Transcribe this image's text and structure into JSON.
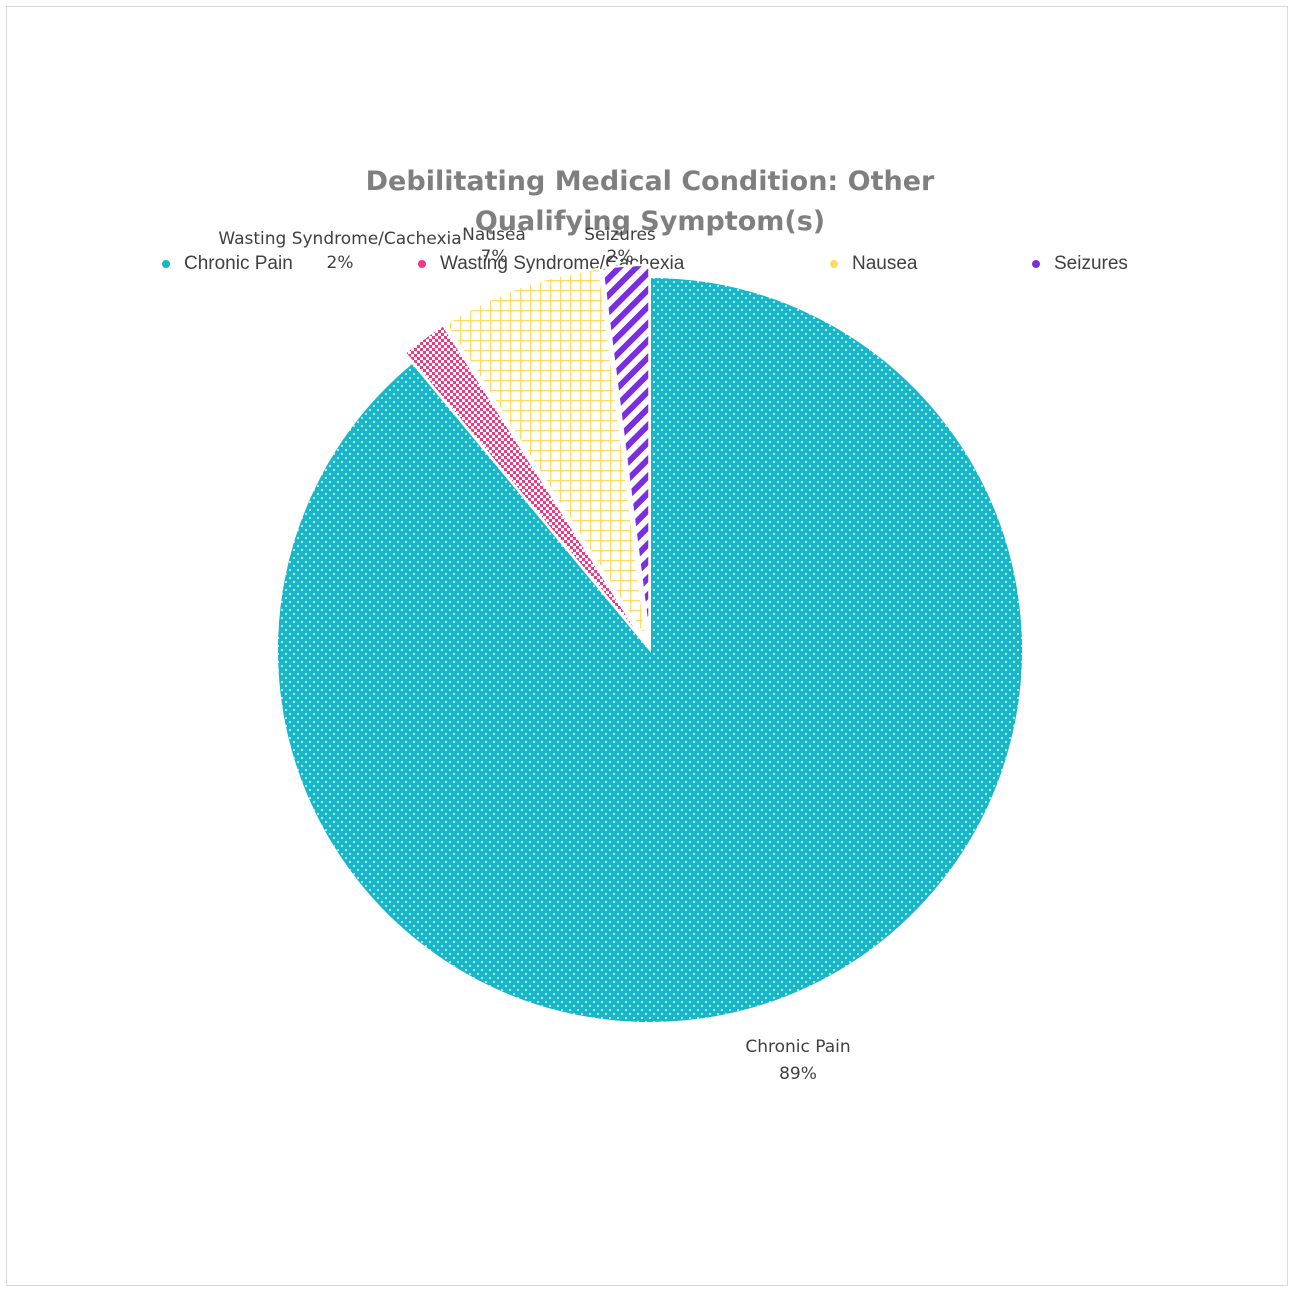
{
  "chart_data": {
    "type": "pie",
    "title": "Debilitating Medical Condition: Other Qualifying Symptom(s)",
    "legend_position": "top",
    "slices": [
      {
        "name": "Chronic Pain",
        "value": 89,
        "label": "89%",
        "color": "#17b6c9"
      },
      {
        "name": "Wasting Syndrome/Cachexia",
        "value": 2,
        "label": "2%",
        "color": "#ec3b7e"
      },
      {
        "name": "Nausea",
        "value": 7,
        "label": "7%",
        "color": "#ffd966"
      },
      {
        "name": "Seizures",
        "value": 2,
        "label": "2%",
        "color": "#7b2ee0"
      }
    ]
  }
}
